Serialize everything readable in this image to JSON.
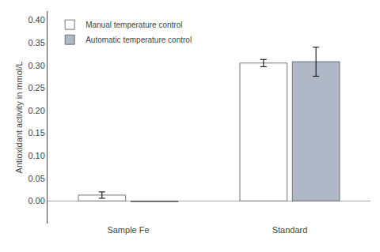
{
  "chart_data": {
    "type": "bar",
    "categories": [
      "Sample Fe",
      "Standard"
    ],
    "series": [
      {
        "name": "Manual temperature control",
        "color": "#ffffff",
        "values": [
          0.013,
          0.305
        ],
        "errors": [
          0.007,
          0.008
        ]
      },
      {
        "name": "Automatic temperature control",
        "color": "#b0b8c8",
        "values": [
          -0.002,
          0.308
        ],
        "errors": [
          null,
          0.032
        ]
      }
    ],
    "ylabel": "Antioxidant activity in mmol/L",
    "ylim": [
      -0.05,
      0.42
    ],
    "yticks": [
      {
        "value": 0.0,
        "label": "0.00"
      },
      0.05,
      {
        "value": 0.1,
        "label": "0.10"
      },
      0.15,
      {
        "value": 0.2,
        "label": "0.20"
      },
      0.25,
      {
        "value": 0.3,
        "label": "0.30"
      },
      0.35,
      {
        "value": 0.4,
        "label": "0.40"
      }
    ],
    "grid": false,
    "legend": "upper left"
  }
}
